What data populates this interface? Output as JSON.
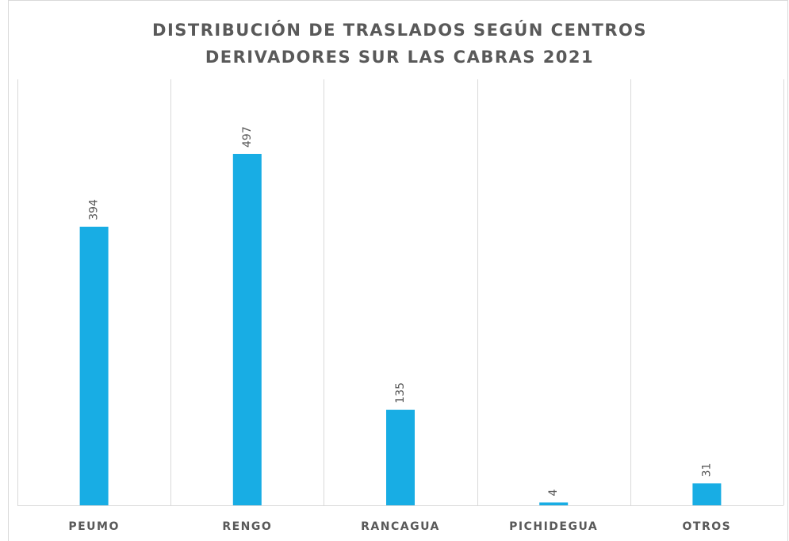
{
  "chart_data": {
    "type": "bar",
    "title": [
      "DISTRIBUCIÓN DE TRASLADOS SEGÚN CENTROS",
      "DERIVADORES SUR LAS CABRAS 2021"
    ],
    "categories": [
      "PEUMO",
      "RENGO",
      "RANCAGUA",
      "PICHIDEGUA",
      "OTROS"
    ],
    "values": [
      394,
      497,
      135,
      4,
      31
    ],
    "color": "#18ade4"
  }
}
